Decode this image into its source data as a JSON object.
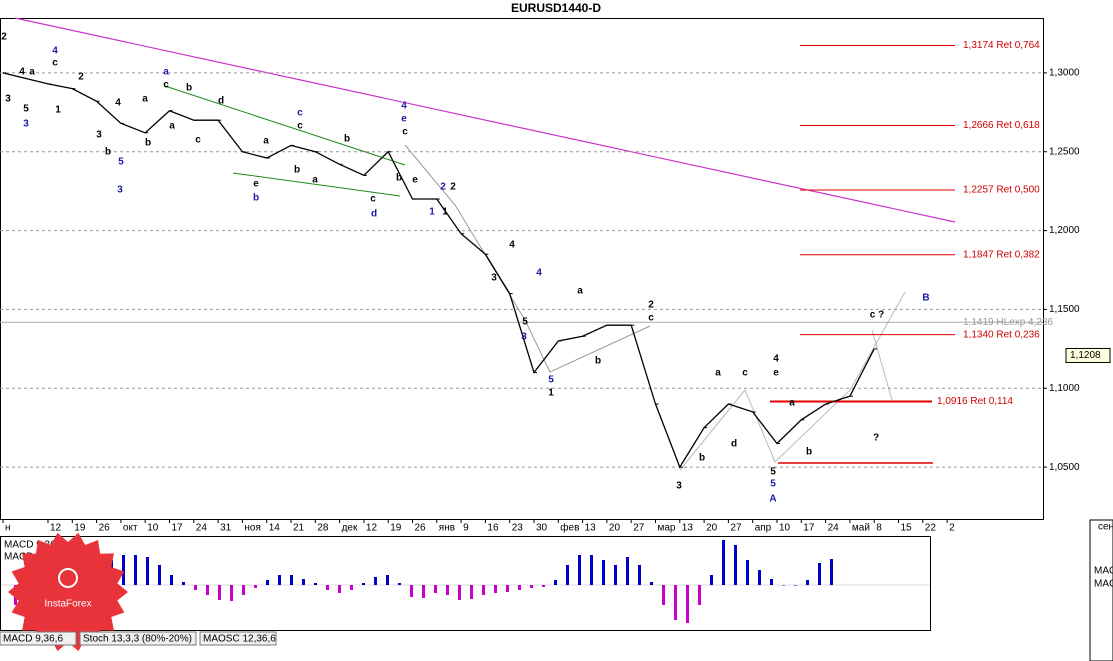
{
  "chart_data": {
    "type": "line",
    "title": "EURUSD1440-D",
    "categories": [
      "н",
      "12",
      "19",
      "26",
      "окт",
      "10",
      "17",
      "24",
      "31",
      "ноя",
      "14",
      "21",
      "28",
      "дек",
      "12",
      "19",
      "26",
      "янв",
      "9",
      "16",
      "23",
      "30",
      "фев",
      "13",
      "20",
      "27",
      "мар",
      "13",
      "20",
      "27",
      "апр",
      "10",
      "17",
      "24",
      "май",
      "8",
      "15",
      "22",
      "2"
    ],
    "values": [
      1.3,
      1.293,
      1.29,
      1.282,
      1.268,
      1.262,
      1.276,
      1.27,
      1.27,
      1.25,
      1.246,
      1.254,
      1.25,
      1.242,
      1.235,
      1.25,
      1.22,
      1.22,
      1.198,
      1.185,
      1.16,
      1.11,
      1.13,
      1.133,
      1.14,
      1.14,
      1.09,
      1.05,
      1.075,
      1.09,
      1.085,
      1.065,
      1.08,
      1.09,
      1.095,
      1.125,
      null,
      null,
      null
    ],
    "color": "#000000",
    "ylim": [
      1.0171,
      1.3348
    ],
    "yticks": [
      {
        "value": 1.3,
        "label": "1,3000"
      },
      {
        "value": 1.25,
        "label": "1,2500"
      },
      {
        "value": 1.2,
        "label": "1,2000"
      },
      {
        "value": 1.15,
        "label": "1,1500"
      },
      {
        "value": 1.1,
        "label": "1,1000"
      },
      {
        "value": 1.05,
        "label": "1,0500"
      }
    ],
    "grid": true,
    "current_price": {
      "value": 1.1208,
      "label": "1,1208"
    },
    "levels": [
      {
        "value": 1.3174,
        "label": "1,3174 Ret 0,764"
      },
      {
        "value": 1.2666,
        "label": "1,2666 Ret 0,618"
      },
      {
        "value": 1.2257,
        "label": "1,2257 Ret 0,500"
      },
      {
        "value": 1.1847,
        "label": "1,1847 Ret 0,382"
      },
      {
        "value": 1.134,
        "label": "1,1340 Ret 0,236"
      },
      {
        "value": 1.0916,
        "label": "1,0916 Ret 0,114"
      }
    ],
    "hl_level": {
      "value": 1.1419,
      "label": "1,1419 HLexp 4,236"
    },
    "support_level": 1.0526,
    "wave_labels": [
      "2",
      "4",
      "a",
      "5",
      "3",
      "3",
      "4",
      "c",
      "2",
      "1",
      "4",
      "3",
      "b",
      "5",
      "3",
      "a",
      "c",
      "b",
      "a",
      "a",
      "b",
      "c",
      "d",
      "c",
      "c",
      "a",
      "b",
      "b",
      "a",
      "e",
      "b",
      "c",
      "d",
      "4",
      "e",
      "c",
      "b",
      "e",
      "2",
      "2",
      "1",
      "1",
      "4",
      "3",
      "4",
      "5",
      "3",
      "a",
      "b",
      "2",
      "c",
      "5",
      "1",
      "a",
      "c",
      "4",
      "e",
      "d",
      "b",
      "a",
      "b",
      "3",
      "5",
      "5",
      "A",
      "c ?",
      "?",
      "B"
    ],
    "macd": {
      "label": "MACD 9,36,6",
      "value_label": "MACD =0,01",
      "positive_color": "#0000cc",
      "negative_color": "#cc00cc",
      "values": [
        -2,
        -2.5,
        -1.5,
        -0.8,
        0.3,
        0.8,
        1.2,
        2,
        2.5,
        3,
        3,
        2.8,
        2,
        1,
        0.3,
        -0.5,
        -1,
        -1.5,
        -1.6,
        -1,
        -0.3,
        0.5,
        1,
        1,
        0.6,
        0.2,
        -0.5,
        -0.8,
        -0.5,
        0.2,
        0.8,
        1,
        0.2,
        -1.2,
        -1.3,
        -0.8,
        -1,
        -1.5,
        -1.4,
        -1,
        -0.8,
        -0.7,
        -0.5,
        -0.3,
        -0.2,
        0.5,
        2,
        3,
        3,
        2.5,
        2,
        2.8,
        2,
        0.3,
        -2,
        -3.5,
        -3.8,
        -2,
        1,
        4.5,
        4,
        2.5,
        1.5,
        0.6,
        0,
        0,
        0.5,
        2.2,
        2.6
      ]
    },
    "tabs": [
      "MACD 9,36,6",
      "Stoch 13,3,3 (80%-20%)",
      "MAOSC 12,36,6"
    ],
    "logo_text": "InstaForex",
    "side_labels": [
      "сен",
      "MAC",
      "MAC"
    ]
  }
}
